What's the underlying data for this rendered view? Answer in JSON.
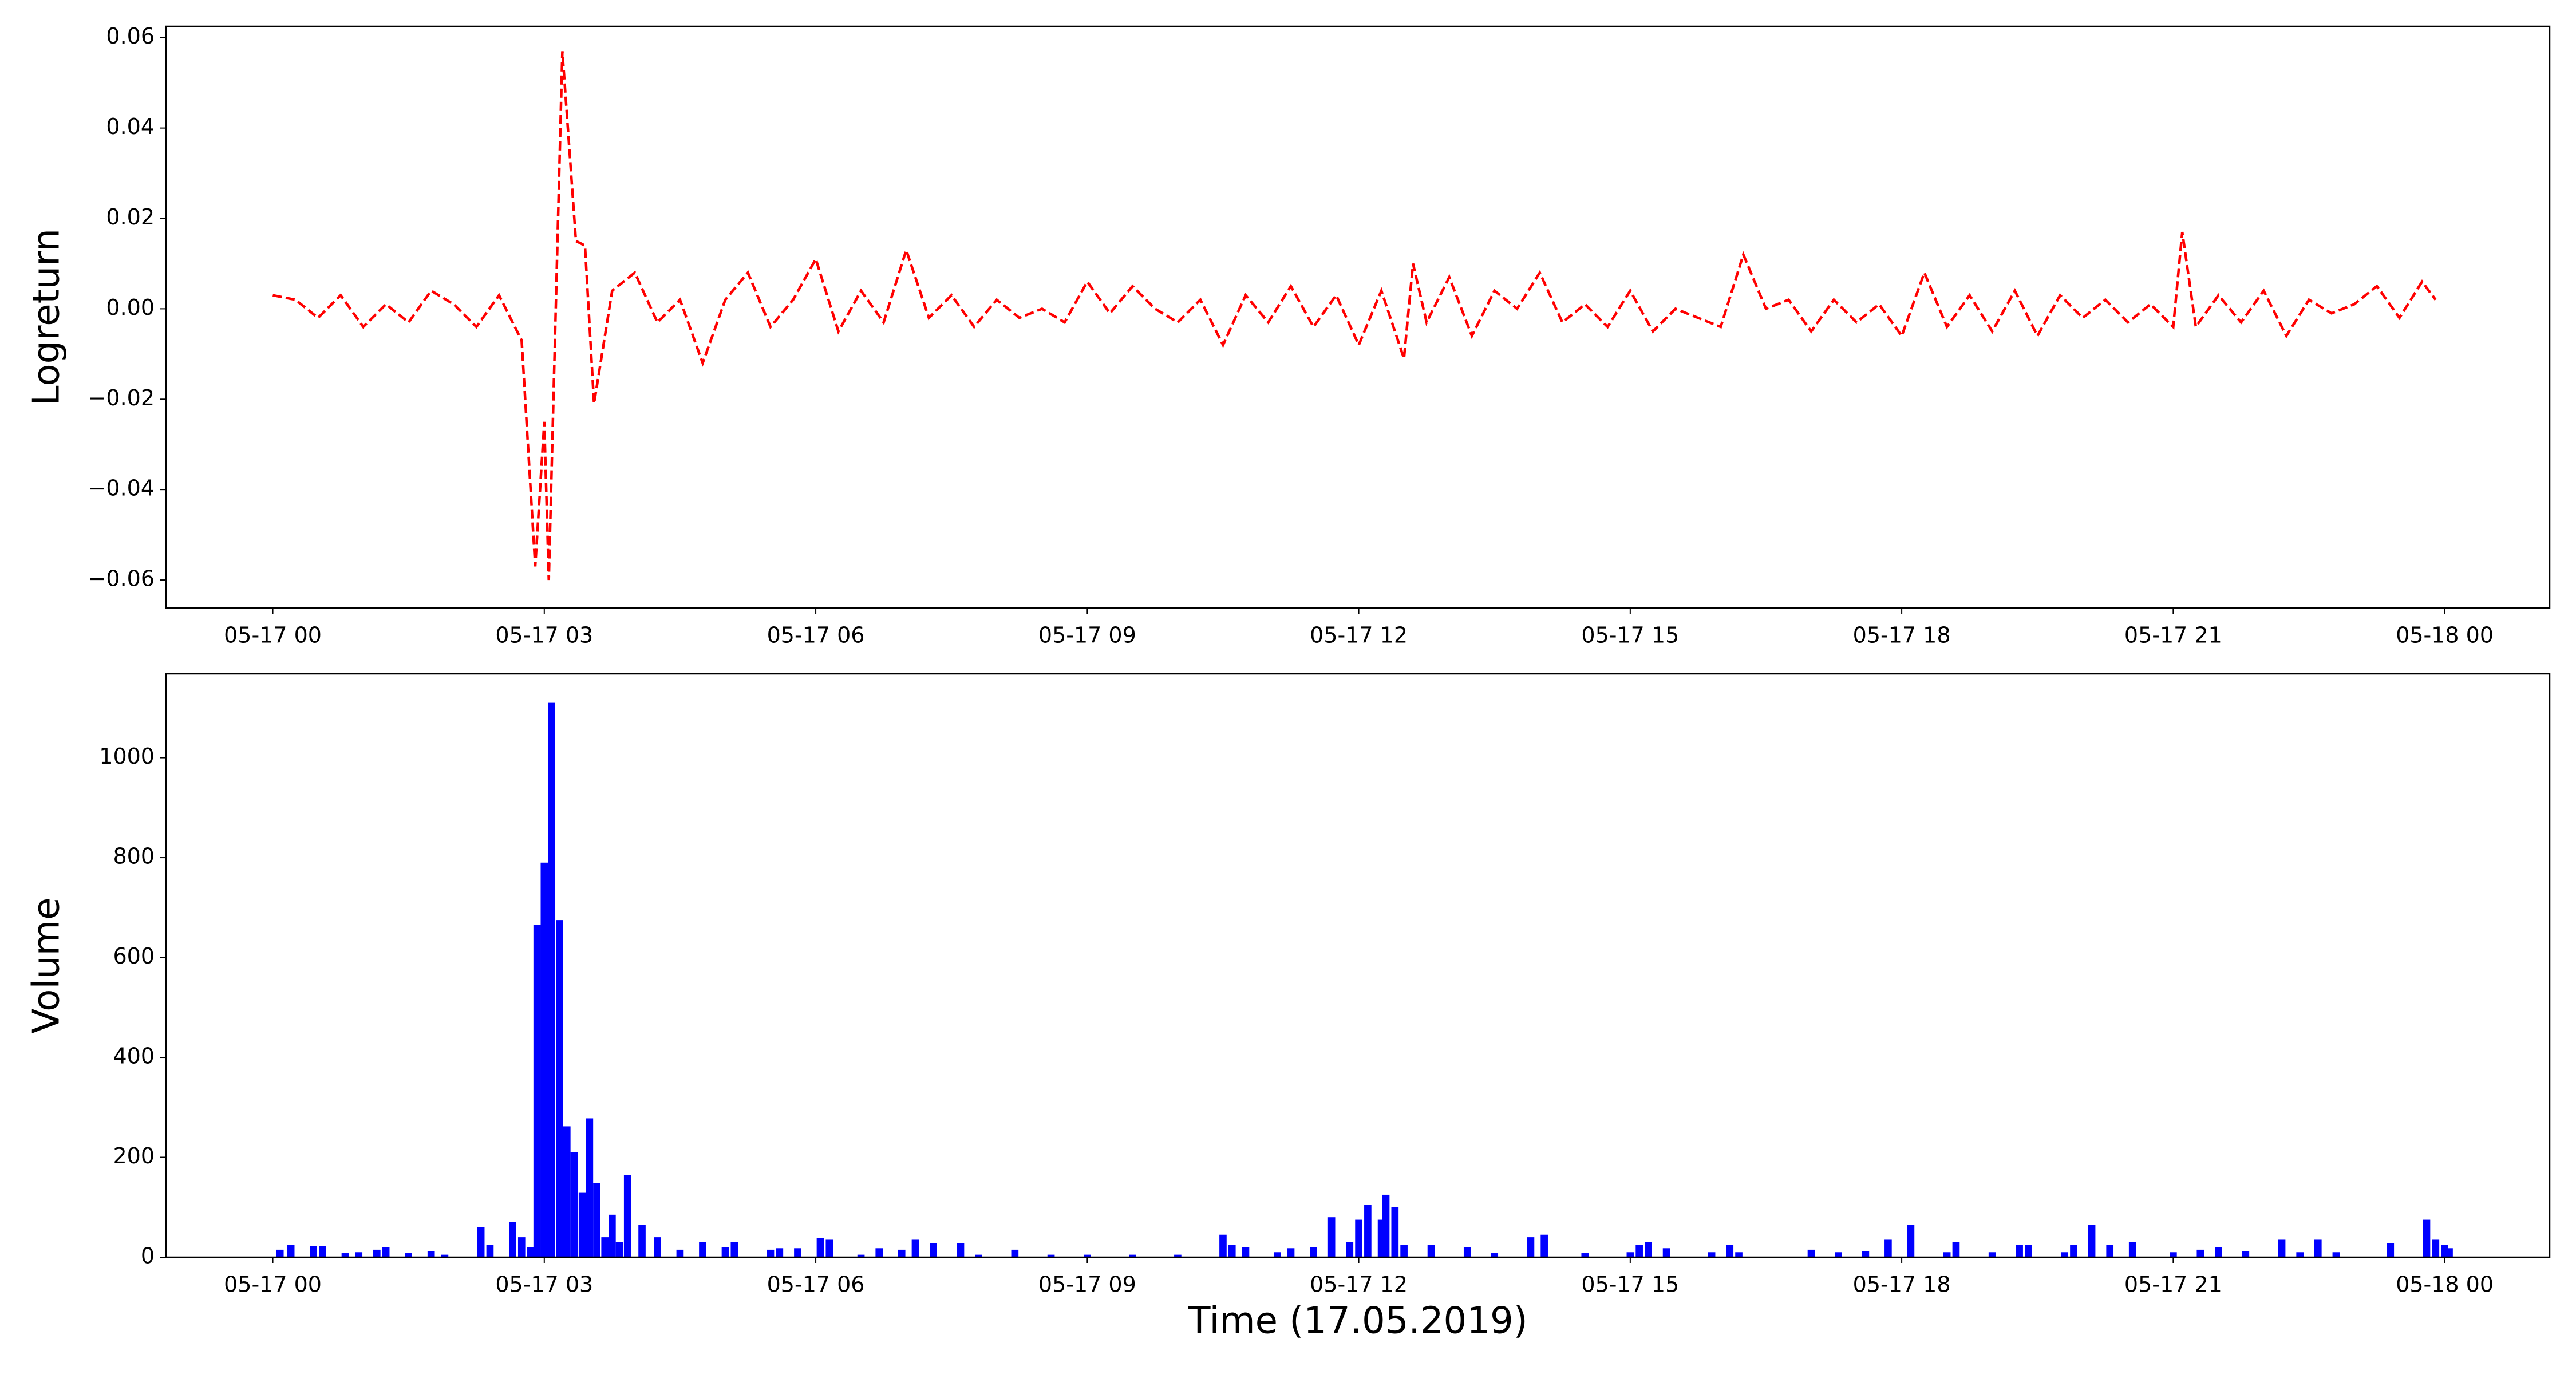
{
  "chart_data": [
    {
      "type": "line",
      "ylabel": "Logreturn",
      "color": "#ff0000",
      "linestyle": "dashed",
      "x": [
        0,
        0.25,
        0.5,
        0.75,
        1,
        1.25,
        1.5,
        1.75,
        2,
        2.25,
        2.5,
        2.75,
        2.9,
        3.0,
        3.05,
        3.2,
        3.35,
        3.45,
        3.55,
        3.75,
        4,
        4.25,
        4.5,
        4.75,
        5,
        5.25,
        5.5,
        5.75,
        6,
        6.25,
        6.5,
        6.75,
        7,
        7.25,
        7.5,
        7.75,
        8,
        8.25,
        8.5,
        8.75,
        9,
        9.25,
        9.5,
        9.75,
        10,
        10.25,
        10.5,
        10.75,
        11,
        11.25,
        11.5,
        11.75,
        12,
        12.25,
        12.5,
        12.6,
        12.75,
        13,
        13.25,
        13.5,
        13.75,
        14,
        14.25,
        14.5,
        14.75,
        15,
        15.25,
        15.5,
        15.75,
        16,
        16.25,
        16.5,
        16.75,
        17,
        17.25,
        17.5,
        17.75,
        18,
        18.25,
        18.5,
        18.75,
        19,
        19.25,
        19.5,
        19.75,
        20,
        20.25,
        20.5,
        20.75,
        21,
        21.1,
        21.25,
        21.5,
        21.75,
        22,
        22.25,
        22.5,
        22.75,
        23,
        23.25,
        23.5,
        23.75,
        23.9
      ],
      "values": [
        0.003,
        0.002,
        -0.002,
        0.003,
        -0.004,
        0.001,
        -0.003,
        0.004,
        0.001,
        -0.004,
        0.003,
        -0.007,
        -0.057,
        -0.025,
        -0.06,
        0.057,
        0.015,
        0.014,
        -0.021,
        0.004,
        0.008,
        -0.003,
        0.002,
        -0.012,
        0.002,
        0.008,
        -0.004,
        0.002,
        0.011,
        -0.005,
        0.004,
        -0.003,
        0.013,
        -0.002,
        0.003,
        -0.004,
        0.002,
        -0.002,
        0.0,
        -0.003,
        0.006,
        -0.001,
        0.005,
        0.0,
        -0.003,
        0.002,
        -0.008,
        0.003,
        -0.003,
        0.005,
        -0.004,
        0.003,
        -0.008,
        0.004,
        -0.011,
        0.01,
        -0.003,
        0.007,
        -0.006,
        0.004,
        0.0,
        0.008,
        -0.003,
        0.001,
        -0.004,
        0.004,
        -0.005,
        0.0,
        -0.002,
        -0.004,
        0.012,
        0.0,
        0.002,
        -0.005,
        0.002,
        -0.003,
        0.001,
        -0.006,
        0.008,
        -0.004,
        0.003,
        -0.005,
        0.004,
        -0.006,
        0.003,
        -0.002,
        0.002,
        -0.003,
        0.001,
        -0.004,
        0.017,
        -0.004,
        0.003,
        -0.003,
        0.004,
        -0.006,
        0.002,
        -0.001,
        0.001,
        0.005,
        -0.002,
        0.006,
        0.002
      ],
      "xlim": [
        -1.18,
        25.16
      ],
      "xticks": [
        {
          "value": 0,
          "label": "05-17 00"
        },
        {
          "value": 3,
          "label": "05-17 03"
        },
        {
          "value": 6,
          "label": "05-17 06"
        },
        {
          "value": 9,
          "label": "05-17 09"
        },
        {
          "value": 12,
          "label": "05-17 12"
        },
        {
          "value": 15,
          "label": "05-17 15"
        },
        {
          "value": 18,
          "label": "05-17 18"
        },
        {
          "value": 21,
          "label": "05-17 21"
        },
        {
          "value": 24,
          "label": "05-18 00"
        }
      ],
      "ylim": [
        -0.0662,
        0.0625
      ],
      "yticks": [
        {
          "value": -0.06,
          "label": "−0.06"
        },
        {
          "value": -0.04,
          "label": "−0.04"
        },
        {
          "value": -0.02,
          "label": "−0.02"
        },
        {
          "value": 0,
          "label": "0.00"
        },
        {
          "value": 0.02,
          "label": "0.02"
        },
        {
          "value": 0.04,
          "label": "0.04"
        },
        {
          "value": 0.06,
          "label": "0.06"
        }
      ]
    },
    {
      "type": "bar",
      "ylabel": "Volume",
      "xlabel": "Time (17.05.2019)",
      "color": "#0000ff",
      "x": [
        0.08,
        0.2,
        0.45,
        0.55,
        0.8,
        0.95,
        1.15,
        1.25,
        1.5,
        1.75,
        1.9,
        2.3,
        2.4,
        2.65,
        2.75,
        2.85,
        2.92,
        3.0,
        3.08,
        3.17,
        3.25,
        3.33,
        3.42,
        3.5,
        3.58,
        3.67,
        3.75,
        3.83,
        3.92,
        4.08,
        4.25,
        4.5,
        4.75,
        5.0,
        5.1,
        5.5,
        5.6,
        5.8,
        6.05,
        6.15,
        6.5,
        6.7,
        6.95,
        7.1,
        7.3,
        7.6,
        7.8,
        8.2,
        8.6,
        9.0,
        9.5,
        10.0,
        10.5,
        10.6,
        10.75,
        11.1,
        11.25,
        11.5,
        11.7,
        11.9,
        12.0,
        12.1,
        12.25,
        12.3,
        12.4,
        12.5,
        12.8,
        13.2,
        13.5,
        13.9,
        14.05,
        14.5,
        15.0,
        15.1,
        15.2,
        15.4,
        15.9,
        16.1,
        16.2,
        17.0,
        17.3,
        17.6,
        17.85,
        18.1,
        18.5,
        18.6,
        19.0,
        19.3,
        19.4,
        19.8,
        19.9,
        20.1,
        20.3,
        20.55,
        21.0,
        21.3,
        21.5,
        21.8,
        22.2,
        22.4,
        22.6,
        22.8,
        23.4,
        23.8,
        23.9,
        24.0,
        24.05
      ],
      "values": [
        15,
        25,
        22,
        22,
        8,
        10,
        15,
        20,
        8,
        12,
        5,
        60,
        25,
        70,
        40,
        20,
        665,
        790,
        1110,
        675,
        262,
        210,
        130,
        278,
        148,
        40,
        85,
        30,
        165,
        65,
        40,
        15,
        30,
        20,
        30,
        15,
        18,
        18,
        38,
        35,
        5,
        18,
        15,
        35,
        28,
        28,
        5,
        15,
        5,
        5,
        5,
        5,
        45,
        25,
        20,
        10,
        18,
        20,
        80,
        30,
        75,
        105,
        75,
        125,
        100,
        25,
        25,
        20,
        8,
        40,
        45,
        8,
        10,
        25,
        30,
        18,
        10,
        25,
        10,
        15,
        10,
        12,
        35,
        65,
        10,
        30,
        10,
        25,
        25,
        10,
        25,
        65,
        25,
        30,
        10,
        15,
        20,
        12,
        35,
        10,
        35,
        10,
        28,
        75,
        35,
        25,
        18
      ],
      "xlim": [
        -1.18,
        25.16
      ],
      "xticks": [
        {
          "value": 0,
          "label": "05-17 00"
        },
        {
          "value": 3,
          "label": "05-17 03"
        },
        {
          "value": 6,
          "label": "05-17 06"
        },
        {
          "value": 9,
          "label": "05-17 09"
        },
        {
          "value": 12,
          "label": "05-17 12"
        },
        {
          "value": 15,
          "label": "05-17 15"
        },
        {
          "value": 18,
          "label": "05-17 18"
        },
        {
          "value": 21,
          "label": "05-17 21"
        },
        {
          "value": 24,
          "label": "05-18 00"
        }
      ],
      "ylim": [
        0,
        1168
      ],
      "yticks": [
        0,
        200,
        400,
        600,
        800,
        1000
      ]
    }
  ]
}
